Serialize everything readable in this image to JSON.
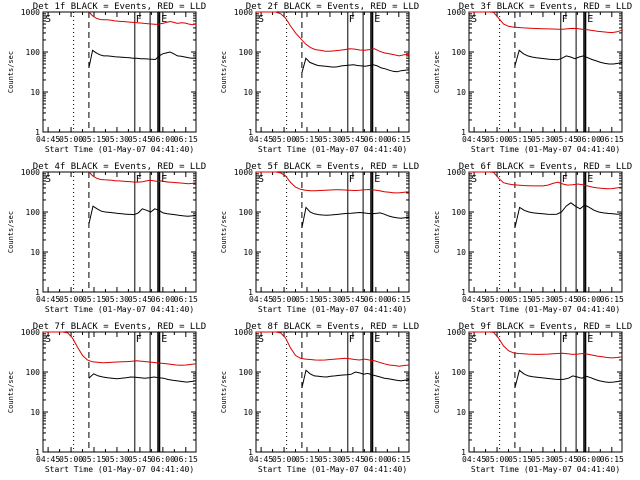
{
  "colors": {
    "events": "#000000",
    "lld": "#dd0000",
    "background": "#ffffff",
    "axes": "#000000"
  },
  "common": {
    "ylabel": "Counts/sec",
    "xlabel": "Start Time (01-May-07 04:41:40)",
    "y_ticks": [
      "1",
      "10",
      "100",
      "1000"
    ],
    "x_ticks": [
      "04:45",
      "05:00",
      "05:15",
      "05:30",
      "05:45",
      "06:00",
      "06:15"
    ],
    "corner_letter": "S",
    "marker_letters": [
      "F",
      "E"
    ]
  },
  "chart_data": [
    {
      "type": "line",
      "title": "Det 1f BLACK = Events, RED = LLD",
      "y_scale": "log",
      "ylim": [
        1,
        1000
      ],
      "xlim": [
        "04:41:40",
        "06:21:40"
      ],
      "vlines": {
        "dotted": "05:01:40",
        "dashed": "05:11:40",
        "solid": [
          "05:41:40",
          "05:51:40",
          "05:56:40"
        ],
        "thick": "05:57:40"
      },
      "series": [
        {
          "color": "red",
          "t_start": "05:11:40",
          "t_end": "06:21:40",
          "values": [
            1000,
            800,
            700,
            650,
            640,
            640,
            620,
            600,
            590,
            580,
            570,
            560,
            550,
            540,
            530,
            520,
            510,
            500,
            490,
            500,
            520,
            550,
            580,
            550,
            520,
            540,
            530,
            500,
            480,
            500
          ]
        },
        {
          "color": "black",
          "t_start": "05:11:40",
          "t_end": "06:21:40",
          "values": [
            40,
            110,
            95,
            85,
            80,
            80,
            78,
            76,
            75,
            74,
            73,
            72,
            70,
            70,
            68,
            68,
            67,
            66,
            65,
            80,
            90,
            95,
            100,
            90,
            80,
            78,
            75,
            72,
            70,
            72
          ]
        }
      ]
    },
    {
      "type": "line",
      "title": "Det 2f BLACK = Events, RED = LLD",
      "y_scale": "log",
      "ylim": [
        1,
        1000
      ],
      "xlim": [
        "04:41:40",
        "06:21:40"
      ],
      "vlines": {
        "dotted": "05:01:40",
        "dashed": "05:11:40",
        "solid": [
          "05:41:40",
          "05:51:40",
          "05:56:40"
        ],
        "thick": "05:57:40"
      },
      "series": [
        {
          "color": "red",
          "t_start": "04:41:40",
          "t_end": "06:21:40",
          "values": [
            1000,
            1000,
            1000,
            1000,
            1000,
            900,
            700,
            450,
            300,
            220,
            160,
            130,
            115,
            110,
            105,
            105,
            108,
            110,
            115,
            120,
            118,
            112,
            110,
            115,
            120,
            105,
            95,
            90,
            85,
            80,
            85,
            88
          ]
        },
        {
          "color": "black",
          "t_start": "05:11:40",
          "t_end": "06:21:40",
          "values": [
            30,
            70,
            55,
            50,
            46,
            45,
            44,
            43,
            42,
            43,
            45,
            46,
            47,
            48,
            46,
            45,
            44,
            46,
            48,
            45,
            40,
            38,
            35,
            33,
            32,
            34,
            35,
            36
          ]
        }
      ]
    },
    {
      "type": "line",
      "title": "Det 3f BLACK = Events, RED = LLD",
      "y_scale": "log",
      "ylim": [
        1,
        1000
      ],
      "xlim": [
        "04:41:40",
        "06:21:40"
      ],
      "vlines": {
        "dotted": "05:01:40",
        "dashed": "05:11:40",
        "solid": [
          "05:41:40",
          "05:51:40",
          "05:56:40"
        ],
        "thick": "05:57:40"
      },
      "series": [
        {
          "color": "red",
          "t_start": "04:41:40",
          "t_end": "06:21:40",
          "values": [
            1000,
            1000,
            1000,
            1000,
            1000,
            980,
            700,
            500,
            440,
            420,
            410,
            400,
            395,
            390,
            385,
            380,
            378,
            375,
            370,
            372,
            380,
            390,
            385,
            370,
            360,
            345,
            330,
            320,
            310,
            305,
            320,
            350
          ]
        },
        {
          "color": "black",
          "t_start": "05:11:40",
          "t_end": "06:21:40",
          "values": [
            45,
            110,
            90,
            80,
            75,
            72,
            70,
            68,
            66,
            65,
            64,
            70,
            80,
            75,
            68,
            75,
            80,
            72,
            65,
            60,
            55,
            52,
            50,
            50,
            52,
            55
          ]
        }
      ]
    },
    {
      "type": "line",
      "title": "Det 4f BLACK = Events, RED = LLD",
      "y_scale": "log",
      "ylim": [
        1,
        1000
      ],
      "xlim": [
        "04:41:40",
        "06:21:40"
      ],
      "vlines": {
        "dotted": "05:01:40",
        "dashed": "05:11:40",
        "solid": [
          "05:41:40",
          "05:51:40",
          "05:56:40"
        ],
        "thick": "05:57:40"
      },
      "series": [
        {
          "color": "red",
          "t_start": "05:11:40",
          "t_end": "06:21:40",
          "values": [
            1000,
            800,
            700,
            650,
            640,
            630,
            620,
            600,
            600,
            590,
            580,
            570,
            560,
            560,
            570,
            600,
            620,
            600,
            580,
            600,
            570,
            560,
            550,
            540,
            530,
            520,
            510,
            520,
            540
          ]
        },
        {
          "color": "black",
          "t_start": "05:11:40",
          "t_end": "06:21:40",
          "values": [
            50,
            140,
            120,
            105,
            100,
            98,
            95,
            92,
            90,
            88,
            87,
            86,
            95,
            120,
            110,
            100,
            120,
            110,
            95,
            90,
            88,
            85,
            82,
            80,
            78,
            80,
            82
          ]
        }
      ]
    },
    {
      "type": "line",
      "title": "Det 5f BLACK = Events, RED = LLD",
      "y_scale": "log",
      "ylim": [
        1,
        1000
      ],
      "xlim": [
        "04:41:40",
        "06:21:40"
      ],
      "vlines": {
        "dotted": "05:01:40",
        "dashed": "05:11:40",
        "solid": [
          "05:41:40",
          "05:51:40",
          "05:56:40"
        ],
        "thick": "05:57:40"
      },
      "series": [
        {
          "color": "red",
          "t_start": "04:41:40",
          "t_end": "06:21:40",
          "values": [
            1000,
            1000,
            1000,
            1000,
            1000,
            950,
            800,
            550,
            420,
            370,
            350,
            340,
            340,
            345,
            350,
            355,
            360,
            360,
            355,
            350,
            345,
            350,
            360,
            365,
            355,
            340,
            320,
            310,
            300,
            300,
            310,
            320
          ]
        },
        {
          "color": "black",
          "t_start": "05:11:40",
          "t_end": "06:21:40",
          "values": [
            40,
            130,
            100,
            90,
            86,
            84,
            83,
            84,
            86,
            88,
            90,
            92,
            93,
            95,
            97,
            95,
            92,
            90,
            92,
            95,
            88,
            80,
            75,
            72,
            70,
            72,
            74
          ]
        }
      ]
    },
    {
      "type": "line",
      "title": "Det 6f BLACK = Events, RED = LLD",
      "y_scale": "log",
      "ylim": [
        1,
        1000
      ],
      "xlim": [
        "04:41:40",
        "06:21:40"
      ],
      "vlines": {
        "dotted": "05:01:40",
        "dashed": "05:11:40",
        "solid": [
          "05:41:40",
          "05:51:40",
          "05:56:40"
        ],
        "thick": "05:57:40"
      },
      "series": [
        {
          "color": "red",
          "t_start": "04:41:40",
          "t_end": "06:21:40",
          "values": [
            1000,
            1000,
            1000,
            1000,
            1000,
            980,
            700,
            540,
            500,
            480,
            470,
            460,
            455,
            450,
            448,
            450,
            470,
            520,
            560,
            500,
            470,
            480,
            500,
            480,
            450,
            420,
            400,
            390,
            380,
            385,
            400,
            420
          ]
        },
        {
          "color": "black",
          "t_start": "05:11:40",
          "t_end": "06:21:40",
          "values": [
            40,
            130,
            110,
            100,
            95,
            92,
            90,
            88,
            87,
            88,
            100,
            140,
            170,
            140,
            120,
            150,
            130,
            110,
            100,
            95,
            92,
            90,
            88,
            90
          ]
        }
      ]
    },
    {
      "type": "line",
      "title": "Det 7f BLACK = Events, RED = LLD",
      "y_scale": "log",
      "ylim": [
        1,
        1000
      ],
      "xlim": [
        "04:41:40",
        "06:21:40"
      ],
      "vlines": {
        "dotted": "05:01:40",
        "dashed": "05:11:40",
        "solid": [
          "05:41:40",
          "05:51:40",
          "05:56:40"
        ],
        "thick": "05:57:40"
      },
      "series": [
        {
          "color": "red",
          "t_start": "04:41:40",
          "t_end": "06:21:40",
          "values": [
            1000,
            1000,
            1000,
            1000,
            1000,
            950,
            700,
            420,
            260,
            200,
            180,
            175,
            170,
            172,
            175,
            178,
            180,
            182,
            185,
            190,
            185,
            180,
            175,
            170,
            165,
            160,
            155,
            150,
            148,
            150,
            155,
            160
          ]
        },
        {
          "color": "black",
          "t_start": "05:11:40",
          "t_end": "06:21:40",
          "values": [
            70,
            90,
            80,
            75,
            72,
            70,
            68,
            70,
            72,
            75,
            74,
            72,
            70,
            72,
            75,
            72,
            70,
            65,
            62,
            60,
            58,
            56,
            58,
            60
          ]
        }
      ]
    },
    {
      "type": "line",
      "title": "Det 8f BLACK = Events, RED = LLD",
      "y_scale": "log",
      "ylim": [
        1,
        1000
      ],
      "xlim": [
        "04:41:40",
        "06:21:40"
      ],
      "vlines": {
        "dotted": "05:01:40",
        "dashed": "05:11:40",
        "solid": [
          "05:41:40",
          "05:51:40",
          "05:56:40"
        ],
        "thick": "05:57:40"
      },
      "series": [
        {
          "color": "red",
          "t_start": "04:41:40",
          "t_end": "06:21:40",
          "values": [
            1000,
            1000,
            1000,
            1000,
            1000,
            950,
            700,
            400,
            260,
            220,
            210,
            205,
            200,
            198,
            200,
            205,
            210,
            215,
            220,
            215,
            205,
            200,
            210,
            200,
            190,
            175,
            160,
            150,
            145,
            140,
            145,
            150
          ]
        },
        {
          "color": "black",
          "t_start": "05:11:40",
          "t_end": "06:21:40",
          "values": [
            40,
            110,
            90,
            80,
            78,
            76,
            75,
            78,
            80,
            82,
            84,
            85,
            88,
            100,
            95,
            88,
            92,
            85,
            80,
            75,
            70,
            68,
            65,
            62,
            60,
            62,
            65
          ]
        }
      ]
    },
    {
      "type": "line",
      "title": "Det 9f BLACK = Events, RED = LLD",
      "y_scale": "log",
      "ylim": [
        1,
        1000
      ],
      "xlim": [
        "04:41:40",
        "06:21:40"
      ],
      "vlines": {
        "dotted": "05:01:40",
        "dashed": "05:11:40",
        "solid": [
          "05:41:40",
          "05:51:40",
          "05:56:40"
        ],
        "thick": "05:57:40"
      },
      "series": [
        {
          "color": "red",
          "t_start": "04:41:40",
          "t_end": "06:21:40",
          "values": [
            1000,
            1000,
            1000,
            1000,
            1000,
            980,
            700,
            450,
            340,
            300,
            290,
            285,
            280,
            278,
            275,
            278,
            280,
            285,
            290,
            295,
            285,
            275,
            280,
            290,
            280,
            265,
            250,
            240,
            230,
            225,
            230,
            240
          ]
        },
        {
          "color": "black",
          "t_start": "05:11:40",
          "t_end": "06:21:40",
          "values": [
            40,
            110,
            90,
            80,
            76,
            74,
            72,
            70,
            68,
            66,
            65,
            66,
            70,
            80,
            75,
            70,
            78,
            72,
            65,
            60,
            57,
            55,
            56,
            58,
            60
          ]
        }
      ]
    }
  ]
}
